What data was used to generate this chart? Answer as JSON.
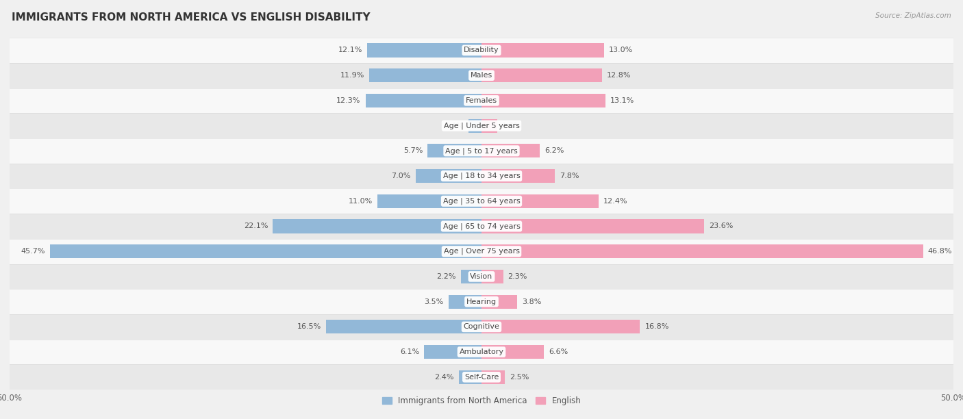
{
  "title": "IMMIGRANTS FROM NORTH AMERICA VS ENGLISH DISABILITY",
  "source": "Source: ZipAtlas.com",
  "categories": [
    "Disability",
    "Males",
    "Females",
    "Age | Under 5 years",
    "Age | 5 to 17 years",
    "Age | 18 to 34 years",
    "Age | 35 to 64 years",
    "Age | 65 to 74 years",
    "Age | Over 75 years",
    "Vision",
    "Hearing",
    "Cognitive",
    "Ambulatory",
    "Self-Care"
  ],
  "left_values": [
    12.1,
    11.9,
    12.3,
    1.4,
    5.7,
    7.0,
    11.0,
    22.1,
    45.7,
    2.2,
    3.5,
    16.5,
    6.1,
    2.4
  ],
  "right_values": [
    13.0,
    12.8,
    13.1,
    1.7,
    6.2,
    7.8,
    12.4,
    23.6,
    46.8,
    2.3,
    3.8,
    16.8,
    6.6,
    2.5
  ],
  "left_color": "#92b8d8",
  "right_color": "#f2a0b8",
  "left_label": "Immigrants from North America",
  "right_label": "English",
  "axis_max": 50.0,
  "bar_height": 0.55,
  "bg_color": "#f0f0f0",
  "row_colors": [
    "#f8f8f8",
    "#e8e8e8"
  ],
  "title_fontsize": 11,
  "label_fontsize": 8.5,
  "cat_fontsize": 8,
  "value_fontsize": 8,
  "source_fontsize": 7.5
}
